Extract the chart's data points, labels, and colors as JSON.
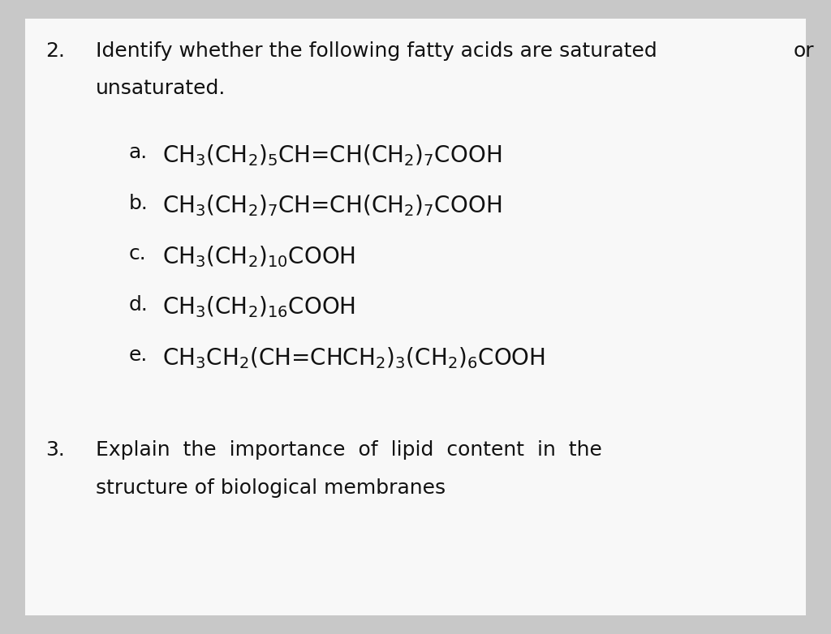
{
  "bg_outer": "#c8c8c8",
  "bg_inner": "#f5f5f5",
  "text_color": "#111111",
  "figsize": [
    10.24,
    7.82
  ],
  "dpi": 100,
  "q2_number": "2.",
  "q2_line1a": "Identify whether the following fatty acids are saturated",
  "q2_line1b": "or",
  "q2_line2": "unsaturated.",
  "items": [
    {
      "label": "a.",
      "formula": "CH$_3$(CH$_2$)$_5$CH=CH(CH$_2$)$_7$COOH"
    },
    {
      "label": "b.",
      "formula": "CH$_3$(CH$_2$)$_7$CH=CH(CH$_2$)$_7$COOH"
    },
    {
      "label": "c.",
      "formula": "CH$_3$(CH$_2$)$_{10}$COOH"
    },
    {
      "label": "d.",
      "formula": "CH$_3$(CH$_2$)$_{16}$COOH"
    },
    {
      "label": "e.",
      "formula": "CH$_3$CH$_2$(CH=CHCH$_2$)$_3$(CH$_2$)$_6$COOH"
    }
  ],
  "q3_number": "3.",
  "q3_line1": "Explain  the  importance  of  lipid  content  in  the",
  "q3_line2": "structure of biological membranes",
  "font_size_main": 18,
  "font_size_formula": 20,
  "font_size_label": 18
}
